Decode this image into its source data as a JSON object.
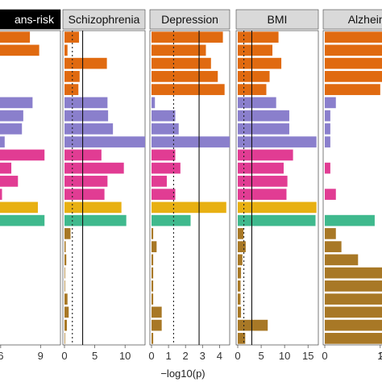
{
  "chart_data": {
    "type": "bar",
    "orientation": "horizontal",
    "x_axis_label": "−log10(p)",
    "rows": 24,
    "row_colors": [
      "#e06a10",
      "#e06a10",
      "#e06a10",
      "#e06a10",
      "#e06a10",
      "#8a7fcc",
      "#8a7fcc",
      "#8a7fcc",
      "#8a7fcc",
      "#e13c93",
      "#e13c93",
      "#e13c93",
      "#e13c93",
      "#e8b012",
      "#3fb98d",
      "#a87826",
      "#a87826",
      "#a87826",
      "#a87826",
      "#a87826",
      "#a87826",
      "#a87826",
      "#a87826",
      "#a87826"
    ],
    "panels": [
      {
        "strip": "ans-risk",
        "strip_style": "dark",
        "xlim": [
          0,
          10.5
        ],
        "ticks": [
          6,
          9
        ],
        "solid_ref": null,
        "dotted_ref": null,
        "values": [
          8.2,
          8.9,
          null,
          null,
          null,
          8.4,
          7.7,
          7.6,
          6.3,
          9.3,
          6.8,
          7.3,
          6.1,
          8.8,
          9.3,
          null,
          null,
          null,
          null,
          null,
          null,
          null,
          null,
          null
        ]
      },
      {
        "strip": "Schizophrenia",
        "strip_style": "grey",
        "xlim": [
          0,
          13.3
        ],
        "ticks": [
          0,
          5,
          10
        ],
        "solid_ref": 3.0,
        "dotted_ref": 1.3,
        "values": [
          2.4,
          0.5,
          7.0,
          2.5,
          2.3,
          7.1,
          7.2,
          8.0,
          13.3,
          6.1,
          9.8,
          7.1,
          6.6,
          9.4,
          10.2,
          1.0,
          0.2,
          0.3,
          0.1,
          0.1,
          0.5,
          0.7,
          0.4,
          0.1
        ]
      },
      {
        "strip": "Depression",
        "strip_style": "grey",
        "xlim": [
          0,
          4.6
        ],
        "ticks": [
          0,
          1,
          2,
          3,
          4
        ],
        "solid_ref": 2.8,
        "dotted_ref": 1.3,
        "values": [
          4.2,
          3.2,
          3.5,
          3.9,
          4.3,
          0.2,
          1.4,
          1.6,
          4.6,
          1.4,
          1.7,
          0.9,
          1.4,
          4.4,
          2.3,
          0.1,
          0.3,
          0.1,
          0.1,
          0.1,
          0.1,
          0.6,
          0.6,
          0.1
        ]
      },
      {
        "strip": "BMI",
        "strip_style": "grey",
        "xlim": [
          0,
          17.2
        ],
        "ticks": [
          0,
          5,
          10,
          15
        ],
        "solid_ref": 3.0,
        "dotted_ref": 1.3,
        "values": [
          8.7,
          7.4,
          9.3,
          6.8,
          6.1,
          8.2,
          11.0,
          11.0,
          16.8,
          11.8,
          9.8,
          10.6,
          10.4,
          16.8,
          16.6,
          1.2,
          1.7,
          1.0,
          0.7,
          0.6,
          0.6,
          0.7,
          6.4,
          1.6
        ]
      },
      {
        "strip": "Alzheime",
        "strip_style": "grey",
        "xlim": [
          0,
          1.7
        ],
        "ticks": [
          0,
          1
        ],
        "tick_partial": "2",
        "solid_ref": null,
        "dotted_ref": 1.3,
        "values": [
          1.1,
          1.5,
          1.2,
          1.4,
          1.0,
          0.2,
          0.1,
          0.1,
          0.1,
          0.0,
          0.1,
          0.0,
          0.2,
          0.0,
          0.9,
          0.2,
          0.3,
          0.6,
          1.4,
          1.3,
          1.4,
          1.1,
          1.5,
          1.6
        ]
      }
    ]
  }
}
